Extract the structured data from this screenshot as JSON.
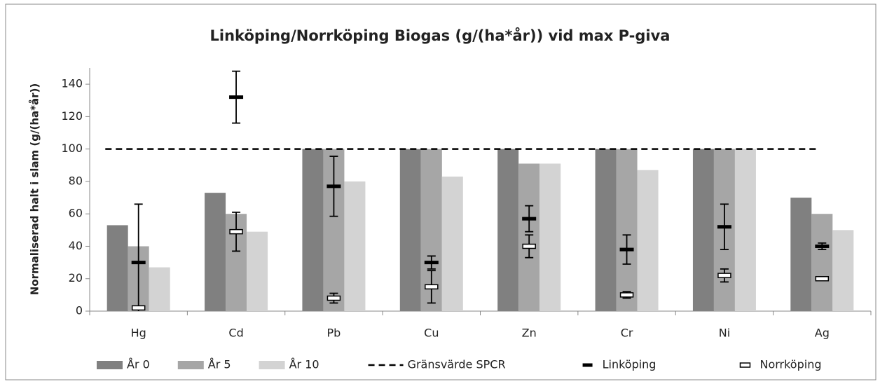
{
  "chart_data": {
    "type": "bar",
    "title": "Linköping/Norrköping  Biogas (g/(ha*år)) vid max P-giva",
    "ylabel": "Normaliserad halt i slam (g/(ha*år))",
    "categories": [
      "Hg",
      "Cd",
      "Pb",
      "Cu",
      "Zn",
      "Cr",
      "Ni",
      "Ag"
    ],
    "series": [
      {
        "name": "År 0",
        "color": "#808080",
        "values": [
          53,
          73,
          100,
          100,
          100,
          100,
          100,
          70
        ]
      },
      {
        "name": "År 5",
        "color": "#a6a6a6",
        "values": [
          40,
          60,
          100,
          100,
          91,
          100,
          100,
          60
        ]
      },
      {
        "name": "År 10",
        "color": "#d3d3d3",
        "values": [
          27,
          49,
          80,
          83,
          91,
          87,
          100,
          50
        ]
      }
    ],
    "limit": {
      "name": "Gränsvärde SPCR",
      "value": 100
    },
    "error_series": [
      {
        "name": "Linköping",
        "color": "#000000",
        "values": [
          30,
          132,
          77,
          30,
          57,
          38,
          52,
          40
        ],
        "errors": [
          36,
          16,
          18.5,
          4,
          8,
          9,
          14,
          2
        ]
      },
      {
        "name": "Norrköping",
        "color": "#ffffff",
        "values": [
          2,
          49,
          8,
          15,
          40,
          10,
          22,
          20
        ],
        "errors": [
          0,
          12,
          3,
          10,
          7,
          2,
          4,
          1
        ]
      }
    ],
    "ylim": [
      0,
      150
    ],
    "yticks": [
      0,
      20,
      40,
      60,
      80,
      100,
      120,
      140
    ],
    "legend": "bottom"
  }
}
